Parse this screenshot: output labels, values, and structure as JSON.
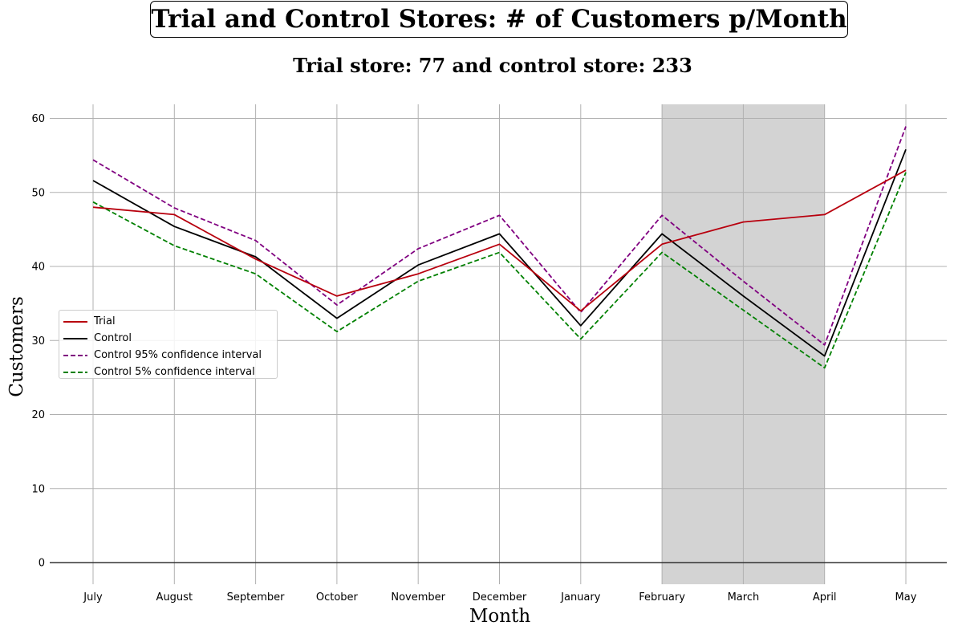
{
  "chart_data": {
    "type": "line",
    "title": "Trial and Control Stores: # of Customers p/Month",
    "subtitle": "Trial store: 77 and control store: 233",
    "xlabel": "Month",
    "ylabel": "Customers",
    "categories": [
      "July",
      "August",
      "September",
      "October",
      "November",
      "December",
      "January",
      "February",
      "March",
      "April",
      "May"
    ],
    "ylim": [
      -3,
      62
    ],
    "yticks": [
      0,
      10,
      20,
      30,
      40,
      50,
      60
    ],
    "grid": true,
    "legend_position": "center-left",
    "highlight_span": {
      "from": "February",
      "to": "April",
      "color": "#d3d3d3"
    },
    "series": [
      {
        "name": "Trial",
        "color": "#b8000e",
        "style": "solid",
        "values": [
          48,
          47,
          41,
          36,
          39,
          43,
          34,
          43,
          46,
          47,
          53
        ]
      },
      {
        "name": "Control",
        "color": "#000000",
        "style": "solid",
        "values": [
          51.6,
          45.4,
          41.3,
          33,
          40.2,
          44.4,
          32,
          44.4,
          36,
          27.9,
          55.8
        ]
      },
      {
        "name": "Control 95% confidence interval",
        "color": "#800080",
        "style": "dashed",
        "values": [
          54.4,
          47.9,
          43.5,
          34.8,
          42.4,
          46.9,
          33.8,
          46.9,
          38,
          29.4,
          58.9
        ]
      },
      {
        "name": "Control 5% confidence interval",
        "color": "#008000",
        "style": "dashed",
        "values": [
          48.7,
          42.8,
          39,
          31.2,
          38,
          41.9,
          30.2,
          41.9,
          34.1,
          26.3,
          52.7
        ]
      }
    ]
  }
}
